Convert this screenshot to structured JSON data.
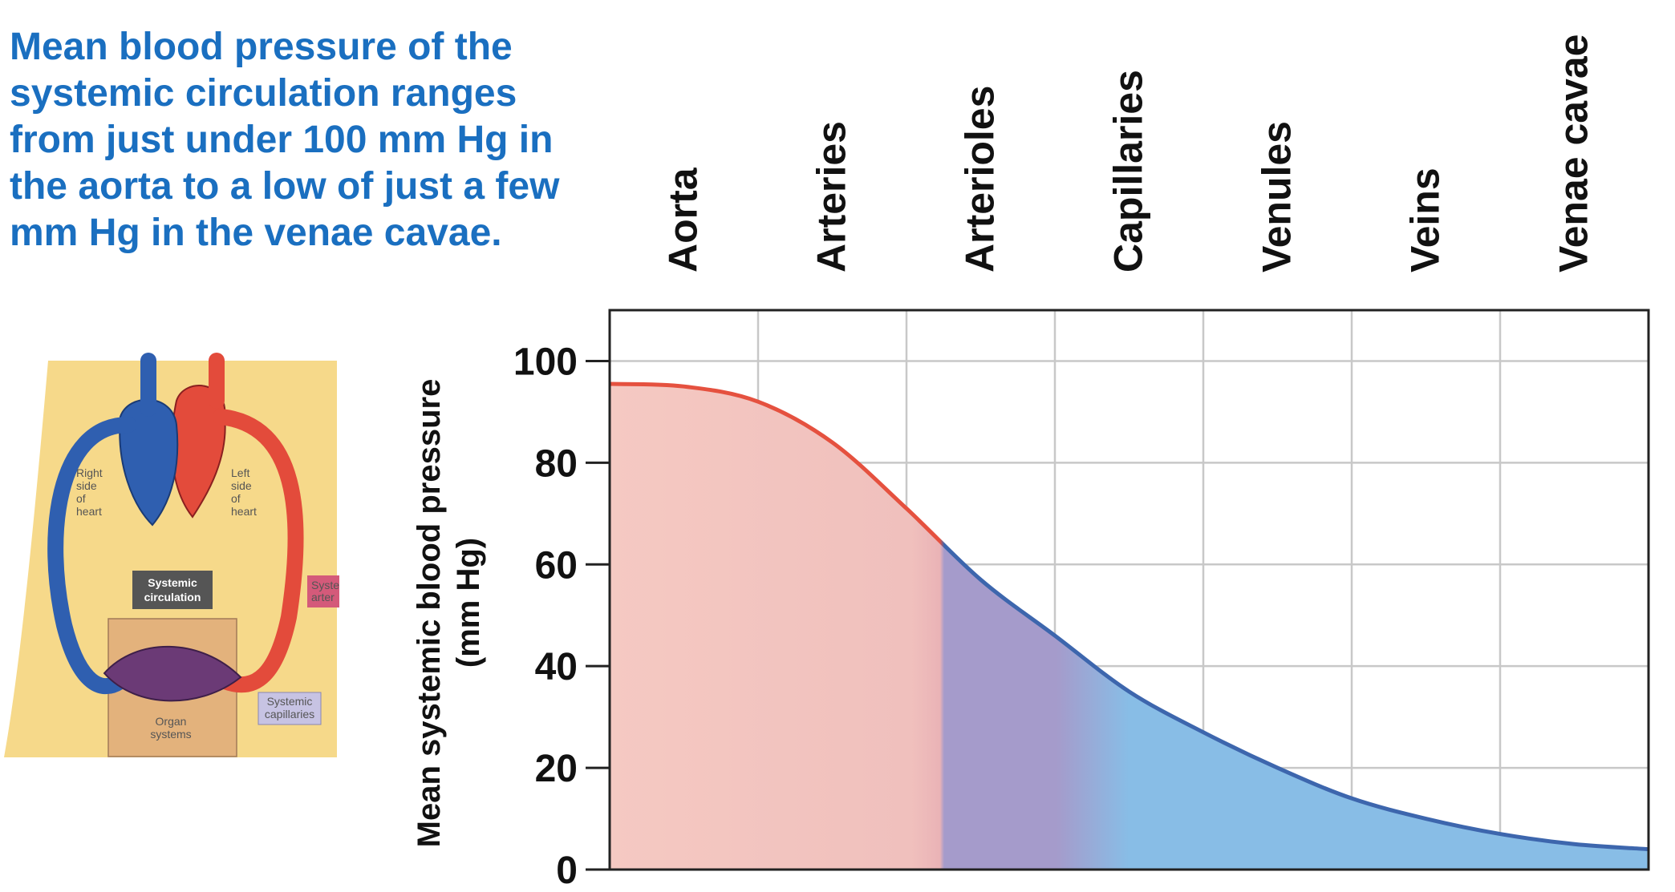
{
  "caption": "Mean blood pressure of the systemic circulation ranges from just under 100 mm Hg in the aorta to a low of just a few mm Hg in the venae cavae.",
  "figure": {
    "labels": {
      "right_heart": [
        "Right",
        "side",
        "of",
        "heart"
      ],
      "left_heart": [
        "Left",
        "side",
        "of",
        "heart"
      ],
      "systemic_circulation": [
        "Systemic",
        "circulation"
      ],
      "systemic_arteries_partial": [
        "Syste",
        "arter"
      ],
      "systemic_capillaries": [
        "Systemic",
        "capillaries"
      ],
      "organ_systems": [
        "Organ",
        "systems"
      ]
    }
  },
  "chart_data": {
    "type": "area",
    "categories": [
      "Aorta",
      "Arteries",
      "Arterioles",
      "Capillaries",
      "Venules",
      "Veins",
      "Venae cavae"
    ],
    "ylabel": [
      "Mean systemic blood pressure",
      "(mm Hg)"
    ],
    "xlabel": "",
    "ylim": [
      0,
      110
    ],
    "yticks": [
      0,
      20,
      40,
      60,
      80,
      100
    ],
    "grid": true,
    "x": [
      0,
      0.5,
      1,
      1.5,
      2,
      2.5,
      3,
      3.5,
      4,
      4.5,
      5,
      5.5,
      6,
      6.5,
      7
    ],
    "series": [
      {
        "values": [
          95.5,
          95,
          92,
          84,
          71,
          57,
          46,
          35,
          27,
          20,
          14,
          10,
          7,
          5,
          4
        ]
      }
    ],
    "colors": {
      "arterial_line": "#e5513f",
      "arterial_fill": "#f5c9c2",
      "capillary_fill": "#a59bcb",
      "venous_line": "#3d66ad",
      "venous_fill": "#88bde6",
      "grid": "#c8c8c8",
      "caption": "#1a6fc0"
    }
  }
}
